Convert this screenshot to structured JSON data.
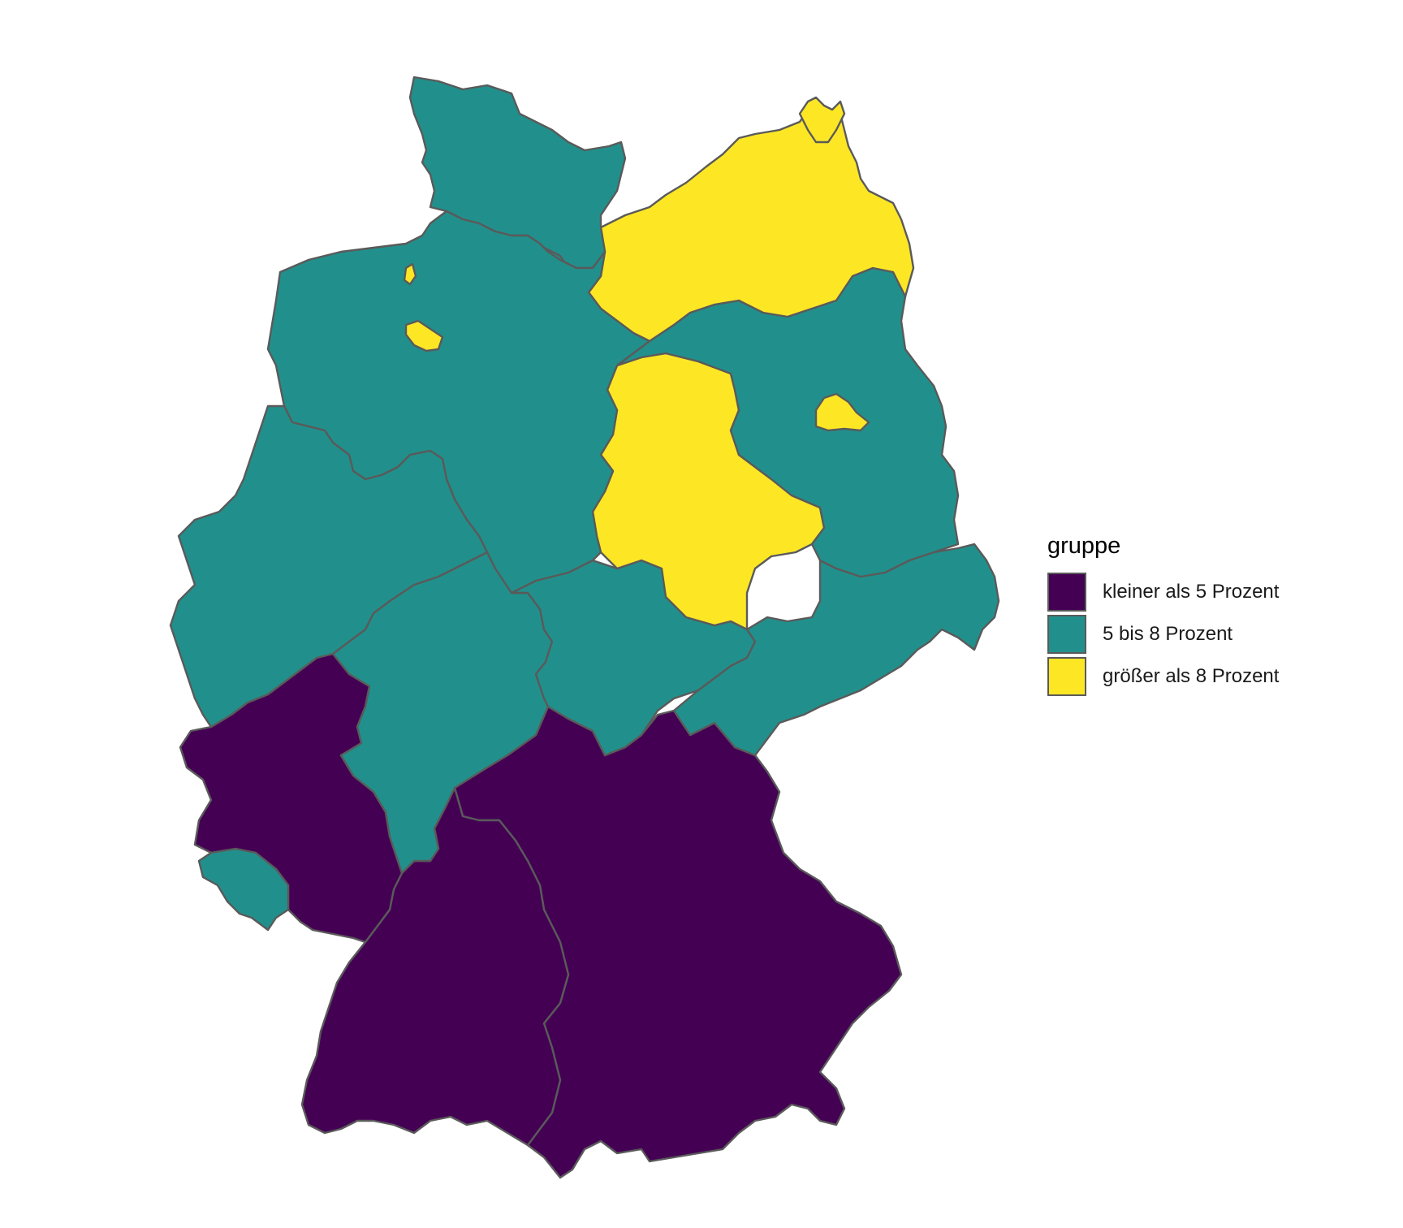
{
  "legend": {
    "title": "gruppe",
    "items": [
      {
        "label": "kleiner als 5 Prozent",
        "color": "#440154"
      },
      {
        "label": "5 bis 8 Prozent",
        "color": "#21908C"
      },
      {
        "label": "größer als 8 Prozent",
        "color": "#FDE725"
      }
    ]
  },
  "states": [
    {
      "name": "Schleswig-Holstein",
      "group": 1
    },
    {
      "name": "Hamburg",
      "group": 1
    },
    {
      "name": "Niedersachsen",
      "group": 1
    },
    {
      "name": "Bremen",
      "group": 2
    },
    {
      "name": "Nordrhein-Westfalen",
      "group": 1
    },
    {
      "name": "Hessen",
      "group": 1
    },
    {
      "name": "Rheinland-Pfalz",
      "group": 0
    },
    {
      "name": "Saarland",
      "group": 1
    },
    {
      "name": "Baden-Württemberg",
      "group": 0
    },
    {
      "name": "Bayern",
      "group": 0
    },
    {
      "name": "Mecklenburg-Vorpommern",
      "group": 2
    },
    {
      "name": "Brandenburg",
      "group": 1
    },
    {
      "name": "Berlin",
      "group": 2
    },
    {
      "name": "Sachsen-Anhalt",
      "group": 2
    },
    {
      "name": "Thüringen",
      "group": 1
    },
    {
      "name": "Sachsen",
      "group": 1
    }
  ]
}
